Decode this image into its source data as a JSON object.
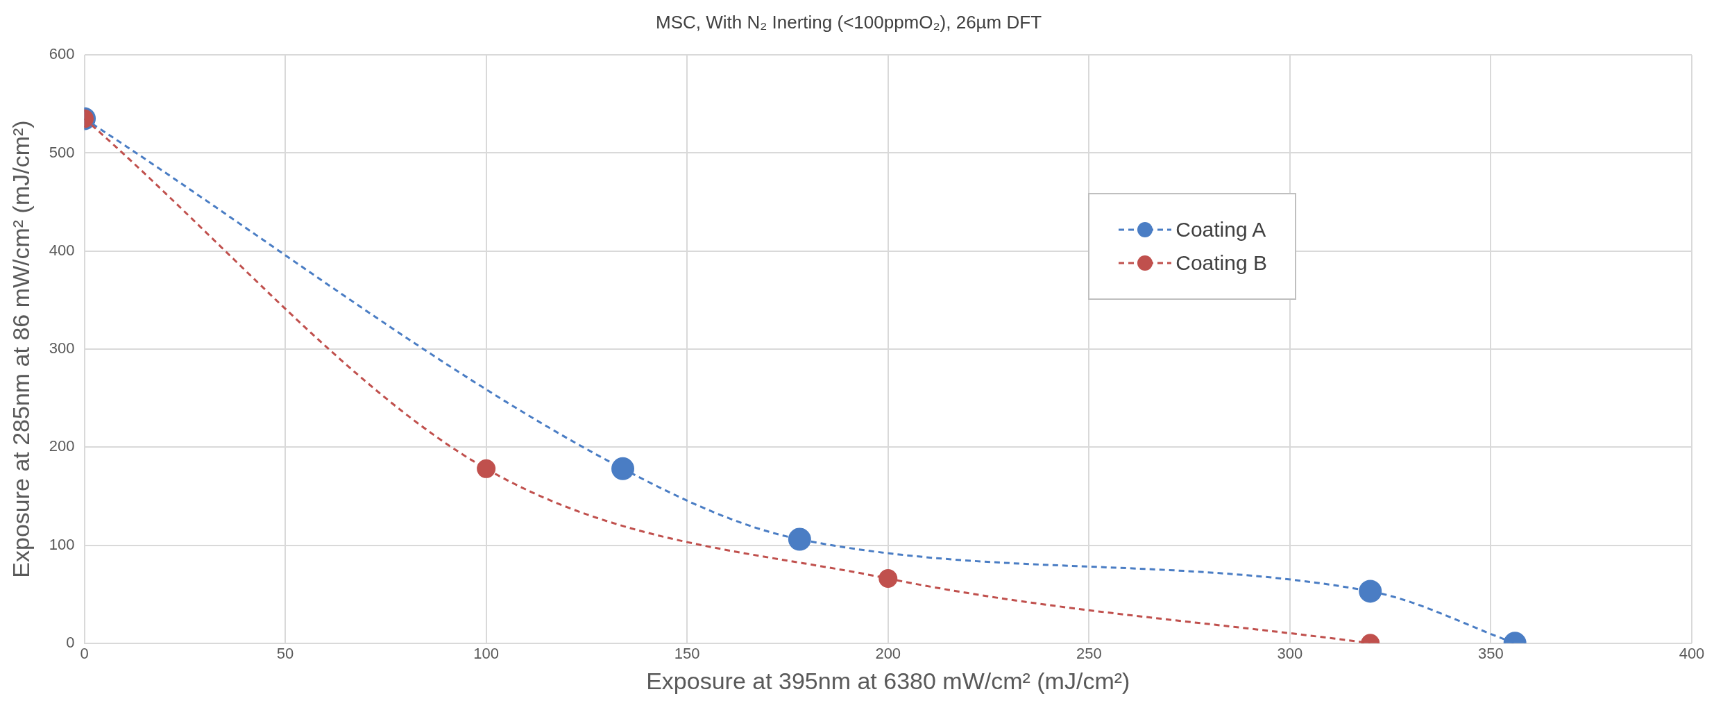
{
  "chart_data": {
    "type": "line",
    "title": "MSC, With N₂ Inerting (<100ppmO₂), 26µm DFT",
    "xlabel": "Exposure at 395nm at 6380 mW/cm² (mJ/cm²)",
    "ylabel": "Exposure at 285nm at 86 mW/cm² (mJ/cm²)",
    "series": [
      {
        "name": "Coating A",
        "color": "#4a7dc4",
        "x": [
          0,
          134,
          178,
          320,
          356
        ],
        "values": [
          535,
          178,
          106,
          53,
          0
        ]
      },
      {
        "name": "Coating B",
        "color": "#c0504d",
        "x": [
          0,
          100,
          200,
          320
        ],
        "values": [
          535,
          178,
          66,
          0
        ]
      }
    ],
    "xlim": [
      0,
      400
    ],
    "xticks": [
      0,
      50,
      100,
      150,
      200,
      250,
      300,
      350,
      400
    ],
    "ylim": [
      0,
      600
    ],
    "yticks": [
      0,
      100,
      200,
      300,
      400,
      500,
      600
    ],
    "grid": true,
    "legend": "top right",
    "marker": "circle",
    "line_style": "dashed"
  }
}
